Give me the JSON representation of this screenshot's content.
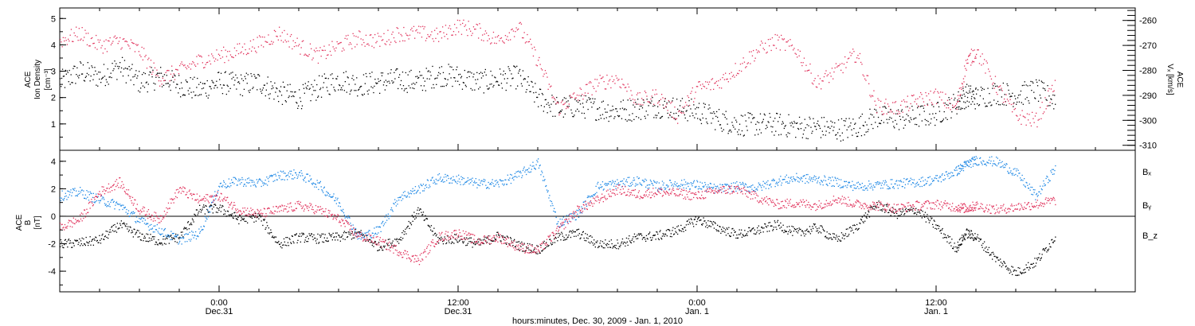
{
  "colors": {
    "black": "#000000",
    "pink": "#e0305a",
    "blue": "#1e88e5"
  },
  "time_axis": {
    "ticks": [
      {
        "label": "0:00",
        "sub": "Dec.31",
        "hour": 24
      },
      {
        "label": "12:00",
        "sub": "Dec.31",
        "hour": 36
      },
      {
        "label": "0:00",
        "sub": "Jan. 1",
        "hour": 48
      },
      {
        "label": "12:00",
        "sub": "Jan. 1",
        "hour": 60
      }
    ],
    "title": "hours:minutes, Dec. 30, 2009 - Jan.  1, 2010",
    "range_hours": [
      16,
      70
    ]
  },
  "chart_data": [
    {
      "type": "scatter",
      "panel": "top",
      "ylabel_left": [
        "ACE",
        "Ion Density",
        "[cm⁻³]"
      ],
      "ylabel_right": [
        "ACE",
        "Vₓ [km/s]"
      ],
      "yticks_left": [
        "1",
        "2",
        "3",
        "4",
        "5"
      ],
      "yticks_right": [
        "-260",
        "-270",
        "-280",
        "-290",
        "-300",
        "-310"
      ],
      "ylim_left": [
        0,
        5.4
      ],
      "ylim_right": [
        -312,
        -255
      ],
      "series": [
        {
          "name": "Ion Density",
          "color": "black",
          "axis": "left",
          "x": [
            16,
            17,
            18,
            19,
            20,
            21,
            22,
            23,
            24,
            25,
            26,
            27,
            28,
            29,
            30,
            31,
            32,
            33,
            34,
            35,
            36,
            37,
            38,
            39,
            40,
            41,
            42,
            43,
            44,
            45,
            46,
            47,
            48,
            49,
            50,
            51,
            52,
            53,
            54,
            55,
            56,
            57,
            58,
            59,
            60,
            61,
            61.5,
            62,
            63,
            64,
            65,
            66
          ],
          "y": [
            2.6,
            3.0,
            2.8,
            3.2,
            2.6,
            2.8,
            2.5,
            2.3,
            2.6,
            2.5,
            2.6,
            2.2,
            2.0,
            2.4,
            2.7,
            2.5,
            2.6,
            2.7,
            2.6,
            2.9,
            2.8,
            2.6,
            2.7,
            2.8,
            2.0,
            1.6,
            1.7,
            1.6,
            1.5,
            1.6,
            1.7,
            1.6,
            1.5,
            1.2,
            1.0,
            1.0,
            1.0,
            0.9,
            0.9,
            0.8,
            0.9,
            1.3,
            1.2,
            1.3,
            1.4,
            1.8,
            2.1,
            2.0,
            2.2,
            2.1,
            2.3,
            1.9
          ]
        },
        {
          "name": "Vx",
          "color": "pink",
          "axis": "right",
          "x": [
            16,
            17,
            18,
            19,
            20,
            21,
            22,
            23,
            24,
            25,
            26,
            27,
            28,
            29,
            30,
            31,
            32,
            33,
            34,
            35,
            36,
            37,
            38,
            39,
            40,
            41,
            42,
            43,
            44,
            45,
            46,
            47,
            48,
            49,
            50,
            51,
            52,
            53,
            54,
            55,
            56,
            57,
            58,
            59,
            60,
            61,
            61.5,
            62,
            63,
            64,
            65,
            66
          ],
          "y": [
            -268,
            -265,
            -270,
            -268,
            -272,
            -283,
            -280,
            -276,
            -274,
            -272,
            -269,
            -265,
            -270,
            -274,
            -270,
            -267,
            -268,
            -265,
            -265,
            -266,
            -262,
            -264,
            -268,
            -262,
            -276,
            -295,
            -290,
            -285,
            -283,
            -292,
            -290,
            -298,
            -287,
            -285,
            -279,
            -272,
            -268,
            -272,
            -285,
            -280,
            -273,
            -294,
            -295,
            -292,
            -290,
            -295,
            -277,
            -272,
            -286,
            -298,
            -300,
            -285
          ]
        }
      ]
    },
    {
      "type": "scatter",
      "panel": "bottom",
      "ylabel_left": [
        "ACE",
        "B",
        "[nT]"
      ],
      "yticks_left": [
        "-4",
        "-2",
        "0",
        "2",
        "4"
      ],
      "ylim": [
        -5.5,
        4.8
      ],
      "legend": [
        "Bₓ",
        "Bᵧ",
        "B_z"
      ],
      "legend_placement": "right",
      "series": [
        {
          "name": "Bx",
          "color": "black",
          "x": [
            16,
            17,
            18,
            19,
            20,
            21,
            22,
            23,
            24,
            25,
            26,
            27,
            28,
            29,
            30,
            31,
            32,
            33,
            34,
            35,
            36,
            37,
            38,
            39,
            40,
            41,
            42,
            43,
            44,
            45,
            46,
            47,
            48,
            49,
            50,
            51,
            52,
            53,
            54,
            55,
            56,
            57,
            58,
            59,
            60,
            61,
            61.5,
            62,
            63,
            64,
            65,
            66
          ],
          "y": [
            -2.0,
            -1.9,
            -1.7,
            -0.6,
            -1.4,
            -1.8,
            -1.5,
            0.5,
            0.6,
            -0.2,
            0.0,
            -2.0,
            -1.5,
            -1.6,
            -1.5,
            -1.2,
            -2.2,
            -1.7,
            0.5,
            -1.7,
            -1.6,
            -2.0,
            -1.4,
            -2.1,
            -2.4,
            -1.5,
            -1.2,
            -2.0,
            -2.0,
            -1.5,
            -1.4,
            -1.0,
            -0.2,
            -0.8,
            -1.3,
            -1.0,
            -0.6,
            -1.2,
            -0.8,
            -1.7,
            -0.7,
            0.9,
            0.2,
            0.5,
            -0.7,
            -2.3,
            -1.2,
            -1.5,
            -3.1,
            -4.1,
            -3.3,
            -1.4
          ]
        },
        {
          "name": "By",
          "color": "blue",
          "x": [
            16,
            17,
            18,
            19,
            20,
            21,
            22,
            23,
            24,
            25,
            26,
            27,
            28,
            29,
            30,
            31,
            32,
            33,
            34,
            35,
            36,
            37,
            38,
            39,
            40,
            41,
            42,
            43,
            44,
            45,
            46,
            47,
            48,
            49,
            50,
            51,
            52,
            53,
            54,
            55,
            56,
            57,
            58,
            59,
            60,
            61,
            61.5,
            62,
            63,
            64,
            65,
            66
          ],
          "y": [
            1.5,
            1.8,
            1.2,
            0.8,
            -0.3,
            -1.0,
            -1.7,
            -1.2,
            2.3,
            2.6,
            2.4,
            3.0,
            3.1,
            2.3,
            1.0,
            -1.5,
            -1.0,
            1.4,
            2.0,
            2.8,
            2.7,
            2.4,
            2.4,
            3.0,
            3.9,
            -0.5,
            0.2,
            2.2,
            2.4,
            2.6,
            2.2,
            2.4,
            2.3,
            2.0,
            2.2,
            2.1,
            2.6,
            2.8,
            2.7,
            2.5,
            2.2,
            2.3,
            2.4,
            2.5,
            2.7,
            3.3,
            3.8,
            4.1,
            4.0,
            3.2,
            1.5,
            3.6
          ]
        },
        {
          "name": "Bz",
          "color": "pink",
          "x": [
            16,
            17,
            18,
            19,
            20,
            21,
            22,
            23,
            24,
            25,
            26,
            27,
            28,
            29,
            30,
            31,
            32,
            33,
            34,
            35,
            36,
            37,
            38,
            39,
            40,
            41,
            42,
            43,
            44,
            45,
            46,
            47,
            48,
            49,
            50,
            51,
            52,
            53,
            54,
            55,
            56,
            57,
            58,
            59,
            60,
            61,
            61.5,
            62,
            63,
            64,
            65,
            66
          ],
          "y": [
            -0.8,
            -0.2,
            1.8,
            2.5,
            0.5,
            -0.2,
            2.0,
            1.2,
            1.5,
            0.5,
            0.2,
            0.5,
            0.8,
            0.5,
            -0.2,
            -1.4,
            -1.8,
            -2.5,
            -3.2,
            -1.5,
            -1.2,
            -1.8,
            -1.5,
            -2.2,
            -2.5,
            -1.0,
            0.5,
            1.2,
            2.0,
            1.6,
            1.8,
            1.7,
            1.5,
            1.9,
            2.0,
            1.4,
            0.9,
            1.0,
            0.8,
            1.3,
            0.9,
            0.8,
            0.6,
            0.8,
            0.9,
            0.7,
            0.6,
            0.8,
            0.5,
            0.7,
            0.9,
            1.2
          ]
        }
      ]
    }
  ]
}
